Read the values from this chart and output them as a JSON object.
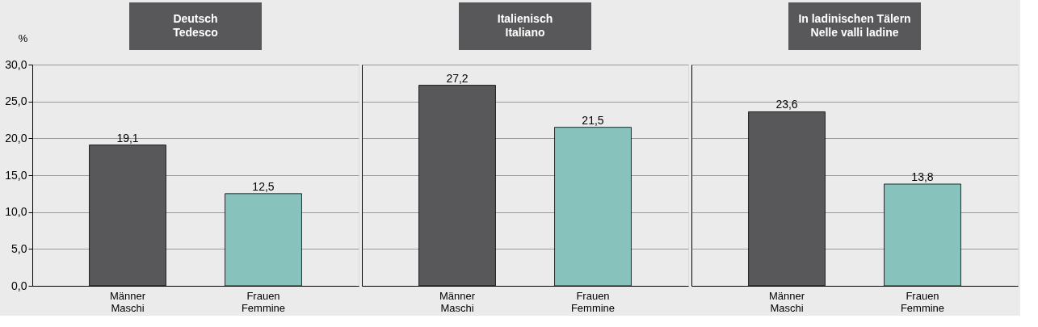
{
  "chart_data": [
    {
      "type": "bar",
      "title": "Deutsch\nTedesco",
      "ylabel": "%",
      "categories": [
        "Männer\nMaschi",
        "Frauen\nFemmine"
      ],
      "values": [
        19.1,
        12.5
      ],
      "colors": [
        "#58585a",
        "#87c2bc"
      ],
      "value_labels": [
        "19,1",
        "12,5"
      ],
      "ylim": [
        0,
        30
      ],
      "yticks": [
        {
          "value": 0,
          "label": "0,0"
        },
        {
          "value": 5,
          "label": "5,0"
        },
        {
          "value": 10,
          "label": "10,0"
        },
        {
          "value": 15,
          "label": "15,0"
        },
        {
          "value": 20,
          "label": "20,0"
        },
        {
          "value": 25,
          "label": "25,0"
        },
        {
          "value": 30,
          "label": "30,0"
        }
      ],
      "grid": "y"
    },
    {
      "type": "bar",
      "title": "Italienisch\nItaliano",
      "categories": [
        "Männer\nMaschi",
        "Frauen\nFemmine"
      ],
      "values": [
        27.2,
        21.5
      ],
      "colors": [
        "#58585a",
        "#87c2bc"
      ],
      "value_labels": [
        "27,2",
        "21,5"
      ],
      "ylim": [
        0,
        30
      ],
      "yticks": [
        0,
        5,
        10,
        15,
        20,
        25,
        30
      ],
      "grid": "y",
      "tick_labels": "x"
    },
    {
      "type": "bar",
      "title": "In ladinischen Tälern\nNelle valli ladine",
      "categories": [
        "Männer\nMaschi",
        "Frauen\nFemmine"
      ],
      "values": [
        23.6,
        13.8
      ],
      "colors": [
        "#58585a",
        "#87c2bc"
      ],
      "value_labels": [
        "23,6",
        "13,8"
      ],
      "ylim": [
        0,
        30
      ],
      "yticks": [
        0,
        5,
        10,
        15,
        20,
        25,
        30
      ],
      "grid": "y",
      "tick_labels": "x"
    }
  ]
}
